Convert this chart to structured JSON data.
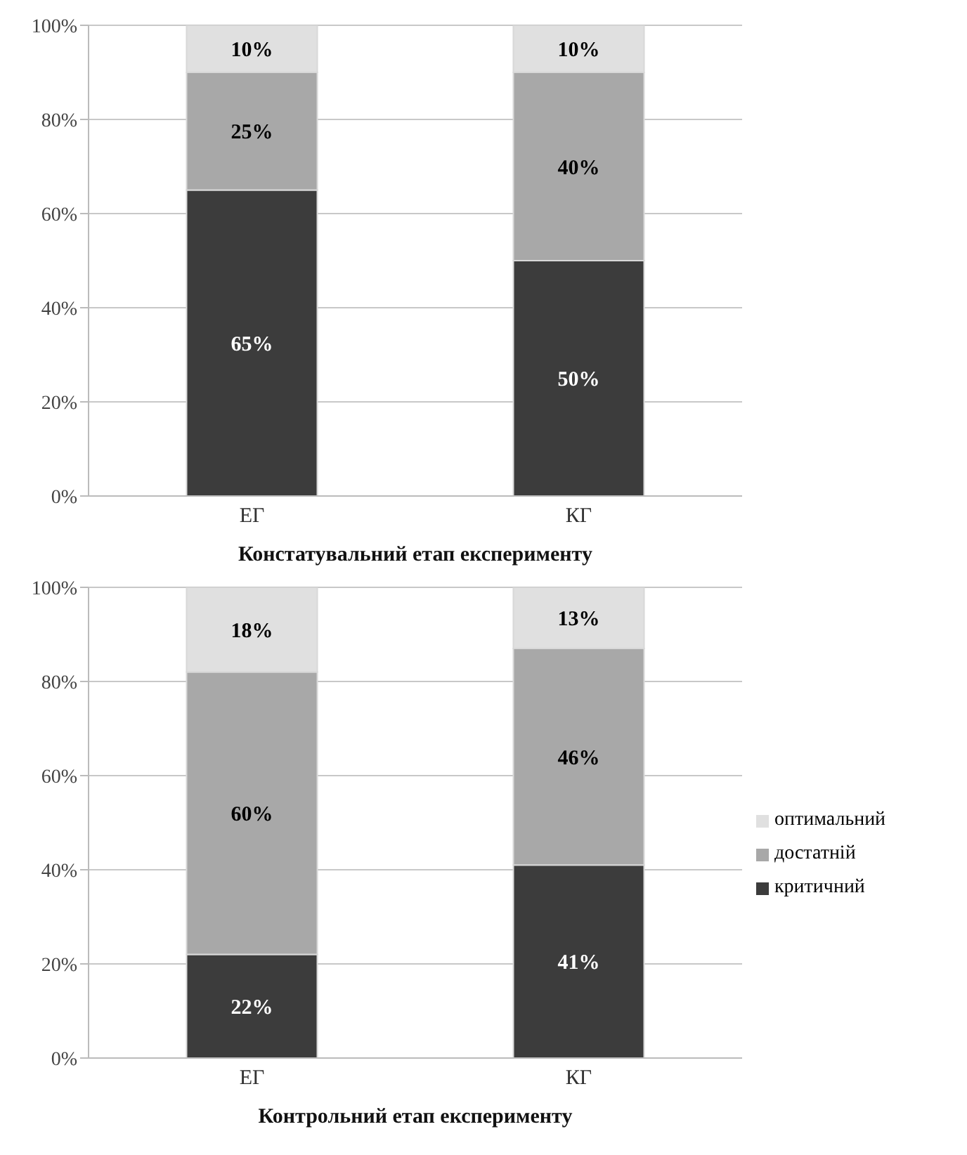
{
  "chart_data": [
    {
      "type": "bar",
      "stacked": true,
      "xlabel": "Констатувальний етап експерименту",
      "categories": [
        "ЕГ",
        "КГ"
      ],
      "series": [
        {
          "color": "#3c3c3c",
          "values": [
            65,
            50
          ],
          "value_labels": [
            "65%",
            "50%"
          ]
        },
        {
          "color": "#a8a8a8",
          "values": [
            25,
            40
          ],
          "value_labels": [
            "25%",
            "40%"
          ]
        },
        {
          "color": "#e0e0e0",
          "values": [
            10,
            10
          ],
          "value_labels": [
            "10%",
            "10%"
          ]
        }
      ],
      "ylim": [
        0,
        100
      ],
      "yticks": [
        {
          "value": 0,
          "label": "0%"
        },
        {
          "value": 20,
          "label": "20%"
        },
        {
          "value": 40,
          "label": "40%"
        },
        {
          "value": 60,
          "label": "60%"
        },
        {
          "value": 80,
          "label": "80%"
        },
        {
          "value": 100,
          "label": "100%"
        }
      ],
      "grid": "y",
      "legend": false
    },
    {
      "type": "bar",
      "stacked": true,
      "xlabel": "Контрольний етап експерименту",
      "categories": [
        "ЕГ",
        "КГ"
      ],
      "series": [
        {
          "name": "критичний",
          "color": "#3c3c3c",
          "values": [
            22,
            41
          ],
          "value_labels": [
            "22%",
            "41%"
          ]
        },
        {
          "name": "достатній",
          "color": "#a8a8a8",
          "values": [
            60,
            46
          ],
          "value_labels": [
            "60%",
            "46%"
          ]
        },
        {
          "name": "оптимальний",
          "color": "#e0e0e0",
          "values": [
            18,
            13
          ],
          "value_labels": [
            "18%",
            "13%"
          ]
        }
      ],
      "ylim": [
        0,
        100
      ],
      "yticks": [
        {
          "value": 0,
          "label": "0%"
        },
        {
          "value": 20,
          "label": "20%"
        },
        {
          "value": 40,
          "label": "40%"
        },
        {
          "value": 60,
          "label": "60%"
        },
        {
          "value": 80,
          "label": "80%"
        },
        {
          "value": 100,
          "label": "100%"
        }
      ],
      "grid": "y",
      "legend": "right"
    }
  ]
}
